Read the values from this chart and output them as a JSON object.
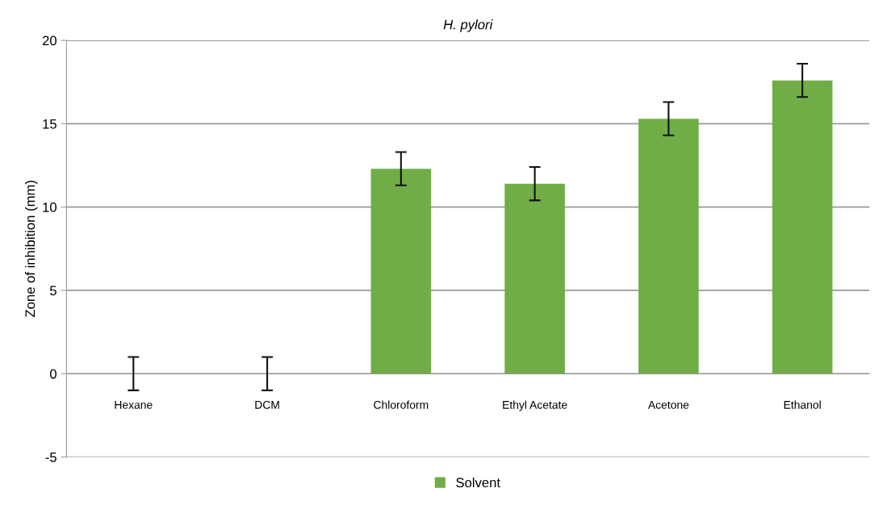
{
  "chart_data": {
    "type": "bar",
    "title": "H. pylori",
    "ylabel": "Zone of inhibition (mm)",
    "categories": [
      "Hexane",
      "DCM",
      "Chloroform",
      "Ethyl Acetate",
      "Acetone",
      "Ethanol"
    ],
    "series": [
      {
        "name": "Solvent",
        "color": "#70ad47",
        "values": [
          0,
          0,
          12.3,
          11.4,
          15.3,
          17.6
        ],
        "errors": [
          1,
          1,
          1,
          1,
          1,
          1
        ]
      }
    ],
    "ylim": [
      -5,
      20
    ],
    "yticks": [
      -5,
      0,
      5,
      10,
      15,
      20
    ],
    "grid": "y",
    "legend": "bottom"
  }
}
